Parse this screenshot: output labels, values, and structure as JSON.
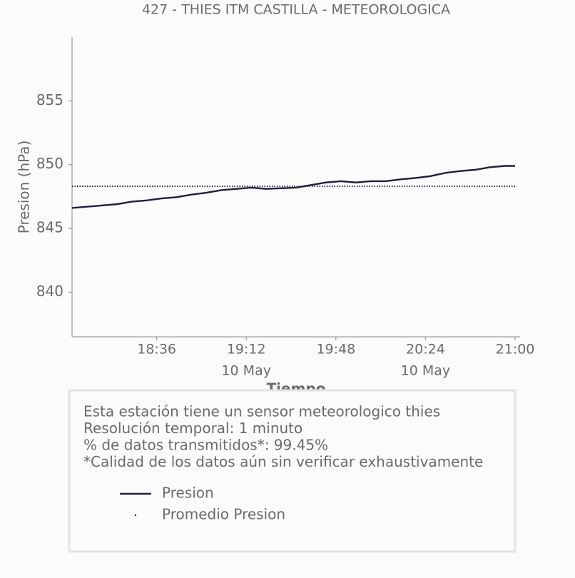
{
  "chart_data": {
    "type": "line",
    "title": "427 - THIES ITM CASTILLA - METEOROLOGICA",
    "x_label": "Tiempo",
    "y_label": "Presion (hPa)",
    "x": [
      "18:02",
      "18:08",
      "18:14",
      "18:20",
      "18:26",
      "18:32",
      "18:38",
      "18:44",
      "18:50",
      "18:56",
      "19:02",
      "19:08",
      "19:14",
      "19:20",
      "19:26",
      "19:32",
      "19:38",
      "19:44",
      "19:50",
      "19:56",
      "20:02",
      "20:08",
      "20:14",
      "20:20",
      "20:26",
      "20:32",
      "20:38",
      "20:44",
      "20:50",
      "20:56",
      "21:00"
    ],
    "series": [
      {
        "name": "Presion",
        "color": "#1f1f3d",
        "style": "solid",
        "values": [
          846.6,
          846.7,
          846.8,
          846.9,
          847.1,
          847.2,
          847.35,
          847.45,
          847.65,
          847.8,
          848.0,
          848.1,
          848.2,
          848.1,
          848.15,
          848.2,
          848.4,
          848.6,
          848.7,
          848.6,
          848.7,
          848.7,
          848.85,
          848.95,
          849.1,
          849.35,
          849.5,
          849.6,
          849.8,
          849.9,
          849.9
        ]
      },
      {
        "name": "Promedio Presion",
        "color": "#1f1f3d",
        "style": "dotted",
        "values": [
          848.3,
          848.3,
          848.3,
          848.3,
          848.3,
          848.3,
          848.3,
          848.3,
          848.3,
          848.3,
          848.3,
          848.3,
          848.3,
          848.3,
          848.3,
          848.3,
          848.3,
          848.3,
          848.3,
          848.3,
          848.3,
          848.3,
          848.3,
          848.3,
          848.3,
          848.3,
          848.3,
          848.3,
          848.3,
          848.3,
          848.3
        ]
      }
    ],
    "xlim": [
      "18:02",
      "21:02"
    ],
    "xticks": [
      "18:36",
      "19:12",
      "19:48",
      "20:24",
      "21:00"
    ],
    "xtick_sublabels": [
      null,
      "10 May",
      null,
      "10 May",
      null
    ],
    "ylim": [
      836.5,
      860
    ],
    "yticks": [
      840,
      845,
      850,
      855
    ],
    "grid": false,
    "info": [
      "Esta estación tiene un sensor meteorologico thies",
      "Resolución temporal: 1 minuto",
      "% de datos transmitidos*: 99.45%",
      "*Calidad de los datos aún sin verificar exhaustivamente"
    ]
  }
}
